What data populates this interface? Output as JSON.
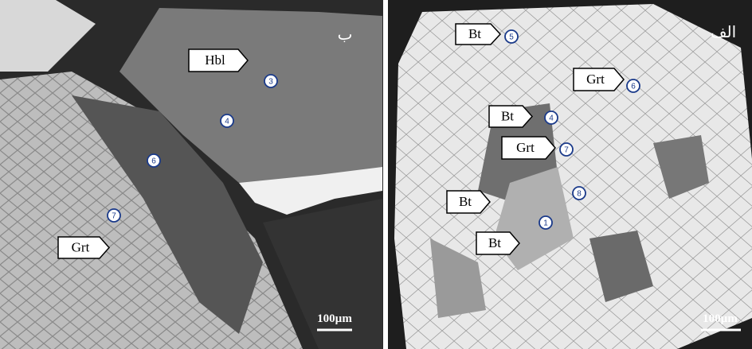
{
  "panels": [
    {
      "corner_label": "ب",
      "scale_bar": "100µm",
      "mineral_tags": [
        "Hbl",
        "Grt"
      ],
      "points": [
        "3",
        "4",
        "6",
        "7"
      ]
    },
    {
      "corner_label": "الف",
      "scale_bar": "100µm",
      "mineral_tags": [
        "Bt",
        "Grt",
        "Bt",
        "Grt",
        "Bt",
        "Bt"
      ],
      "points": [
        "5",
        "6",
        "4",
        "7",
        "8",
        "1"
      ]
    }
  ]
}
